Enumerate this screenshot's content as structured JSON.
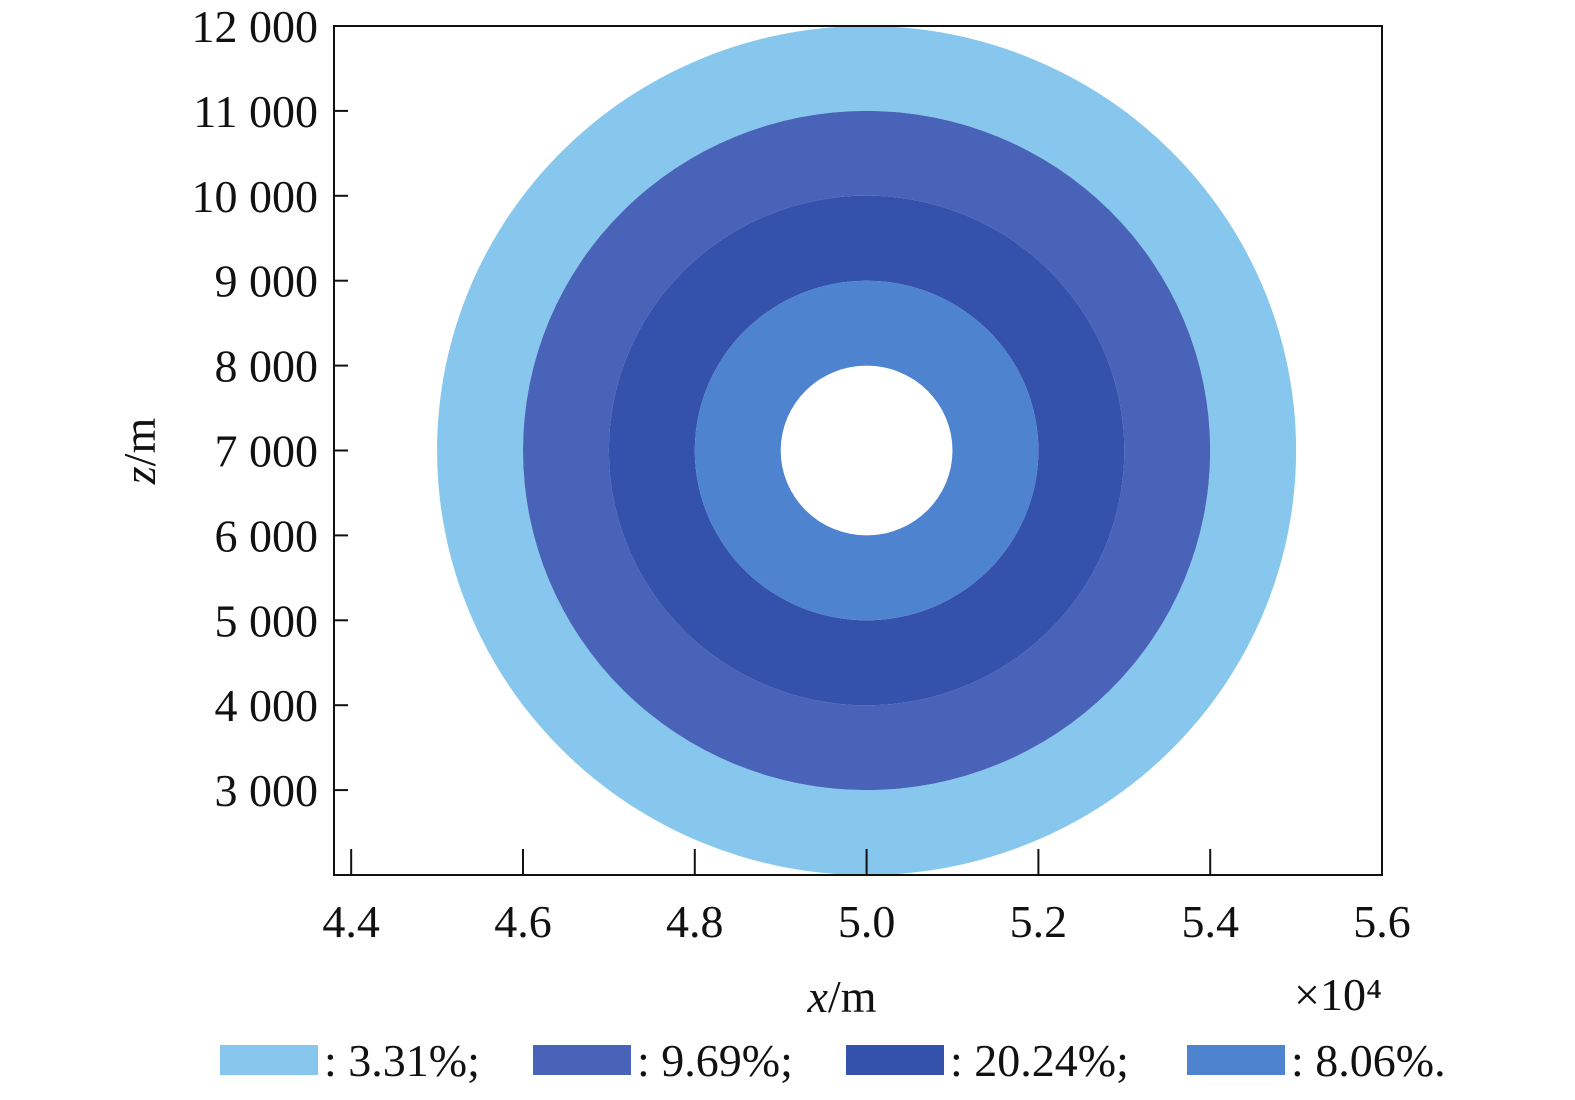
{
  "chart_data": {
    "type": "contour",
    "title": "",
    "xlabel_var": "x",
    "xlabel_unit": "/m",
    "ylabel_var": "z",
    "ylabel_unit": "/m",
    "x_multiplier": "×10⁴",
    "xlim": [
      4.38,
      5.6
    ],
    "ylim": [
      2000,
      12000
    ],
    "x_ticks": [
      4.4,
      4.6,
      4.8,
      5.0,
      5.2,
      5.4,
      5.6
    ],
    "x_tick_labels": [
      "4.4",
      "4.6",
      "4.8",
      "5.0",
      "5.2",
      "5.4",
      "5.6"
    ],
    "y_ticks": [
      3000,
      4000,
      5000,
      6000,
      7000,
      8000,
      9000,
      10000,
      11000,
      12000
    ],
    "y_tick_labels": [
      "3 000",
      "4 000",
      "5 000",
      "6 000",
      "7 000",
      "8 000",
      "9 000",
      "10 000",
      "11 000",
      "12 000"
    ],
    "center": {
      "x": 5.0,
      "z": 7000
    },
    "rings": [
      {
        "label": ": 3.31%;",
        "value": 3.31,
        "color": "#87C7EE",
        "outer_radius_m": 5000,
        "inner_radius_m": 4000
      },
      {
        "label": ": 9.69%;",
        "value": 9.69,
        "color": "#4863B8",
        "outer_radius_m": 4000,
        "inner_radius_m": 3000
      },
      {
        "label": ": 20.24%;",
        "value": 20.24,
        "color": "#3451AB",
        "outer_radius_m": 3000,
        "inner_radius_m": 2000
      },
      {
        "label": ": 8.06%.",
        "value": 8.06,
        "color": "#4E83CF",
        "outer_radius_m": 2000,
        "inner_radius_m": 1000
      }
    ],
    "grid": false,
    "legend_position": "bottom"
  }
}
